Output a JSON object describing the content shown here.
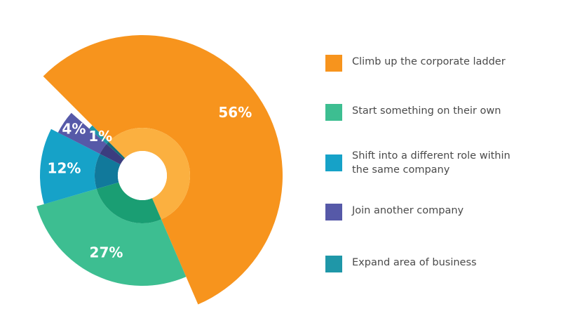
{
  "chart_data": {
    "type": "pie",
    "slices": [
      {
        "label": "Climb up the corporate ladder",
        "value": 56,
        "display": "56%",
        "color": "#f7941d",
        "inner_color": "#fbb040"
      },
      {
        "label": "Start something on their own",
        "value": 27,
        "display": "27%",
        "color": "#3dbe91",
        "inner_color": "#1a9e73"
      },
      {
        "label": "Shift into a different role within the same company",
        "value": 12,
        "display": "12%",
        "color": "#16a2c8",
        "inner_color": "#11799b"
      },
      {
        "label": "Join another company",
        "value": 4,
        "display": "4%",
        "color": "#5659a8",
        "inner_color": "#3b3d7f"
      },
      {
        "label": "Expand area of business",
        "value": 1,
        "display": "1%",
        "color": "#1f97a8",
        "inner_color": "#126c78"
      }
    ],
    "legend_position": "right"
  }
}
